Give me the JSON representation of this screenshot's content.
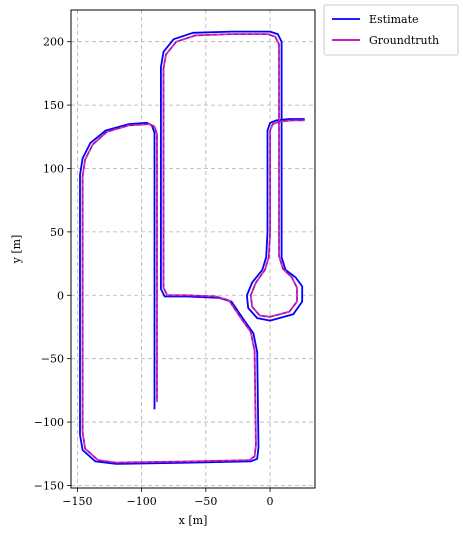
{
  "chart_data": {
    "type": "line",
    "xlabel": "x [m]",
    "ylabel": "y [m]",
    "xlim": [
      -155,
      35
    ],
    "ylim": [
      -152,
      225
    ],
    "xticks": [
      -150,
      -100,
      -50,
      0
    ],
    "xtick_labels": [
      "−150",
      "−100",
      "−50",
      "0"
    ],
    "yticks": [
      -150,
      -100,
      -50,
      0,
      50,
      100,
      150,
      200
    ],
    "ytick_labels": [
      "−150",
      "−100",
      "−50",
      "0",
      "50",
      "100",
      "150",
      "200"
    ],
    "grid": true,
    "legend_position": "outside-top-right",
    "series": [
      {
        "name": "Estimate",
        "color": "#0000ff",
        "points": [
          [
            -90,
            -90
          ],
          [
            -90,
            100
          ],
          [
            -90,
            128
          ],
          [
            -92,
            134
          ],
          [
            -96,
            136
          ],
          [
            -110,
            135
          ],
          [
            -128,
            130
          ],
          [
            -140,
            120
          ],
          [
            -146,
            108
          ],
          [
            -148,
            95
          ],
          [
            -148,
            -110
          ],
          [
            -146,
            -122
          ],
          [
            -136,
            -131
          ],
          [
            -120,
            -133
          ],
          [
            -60,
            -132
          ],
          [
            -15,
            -131
          ],
          [
            -10,
            -129
          ],
          [
            -9,
            -120
          ],
          [
            -10,
            -45
          ],
          [
            -13,
            -30
          ],
          [
            -20,
            -20
          ],
          [
            -30,
            -5
          ],
          [
            -40,
            -2
          ],
          [
            -65,
            -1
          ],
          [
            -82,
            -1
          ],
          [
            -85,
            5
          ],
          [
            -85,
            180
          ],
          [
            -83,
            192
          ],
          [
            -75,
            202
          ],
          [
            -60,
            207
          ],
          [
            -30,
            208
          ],
          [
            0,
            208
          ],
          [
            6,
            206
          ],
          [
            9,
            200
          ],
          [
            9,
            30
          ],
          [
            12,
            20
          ],
          [
            20,
            14
          ],
          [
            25,
            7
          ],
          [
            25,
            -5
          ],
          [
            18,
            -15
          ],
          [
            0,
            -20
          ],
          [
            -10,
            -18
          ],
          [
            -17,
            -10
          ],
          [
            -18,
            0
          ],
          [
            -14,
            10
          ],
          [
            -6,
            20
          ],
          [
            -3,
            30
          ],
          [
            -2,
            50
          ],
          [
            -2,
            130
          ],
          [
            0,
            136
          ],
          [
            5,
            138
          ],
          [
            15,
            139
          ],
          [
            27,
            139
          ]
        ]
      },
      {
        "name": "Groundtruth",
        "color": "#bf00bf",
        "points": [
          [
            -88,
            -84
          ],
          [
            -88,
            100
          ],
          [
            -88,
            127
          ],
          [
            -90,
            133
          ],
          [
            -94,
            135
          ],
          [
            -110,
            134
          ],
          [
            -127,
            129
          ],
          [
            -138,
            119
          ],
          [
            -144,
            107
          ],
          [
            -146,
            94
          ],
          [
            -146,
            -108
          ],
          [
            -144,
            -121
          ],
          [
            -134,
            -130
          ],
          [
            -120,
            -132
          ],
          [
            -60,
            -131
          ],
          [
            -16,
            -130
          ],
          [
            -12,
            -127
          ],
          [
            -11,
            -118
          ],
          [
            -12,
            -44
          ],
          [
            -15,
            -29
          ],
          [
            -22,
            -19
          ],
          [
            -32,
            -4
          ],
          [
            -42,
            -1
          ],
          [
            -65,
            0
          ],
          [
            -80,
            0
          ],
          [
            -83,
            6
          ],
          [
            -83,
            179
          ],
          [
            -81,
            190
          ],
          [
            -73,
            200
          ],
          [
            -58,
            205
          ],
          [
            -30,
            206
          ],
          [
            -2,
            206
          ],
          [
            4,
            204
          ],
          [
            7,
            198
          ],
          [
            7,
            31
          ],
          [
            10,
            21
          ],
          [
            17,
            14
          ],
          [
            21,
            6
          ],
          [
            21,
            -5
          ],
          [
            15,
            -13
          ],
          [
            0,
            -17
          ],
          [
            -8,
            -16
          ],
          [
            -14,
            -9
          ],
          [
            -15,
            0
          ],
          [
            -11,
            10
          ],
          [
            -4,
            20
          ],
          [
            -1,
            30
          ],
          [
            0,
            50
          ],
          [
            0,
            130
          ],
          [
            2,
            135
          ],
          [
            7,
            137
          ],
          [
            17,
            138
          ],
          [
            27,
            138
          ]
        ]
      }
    ]
  }
}
